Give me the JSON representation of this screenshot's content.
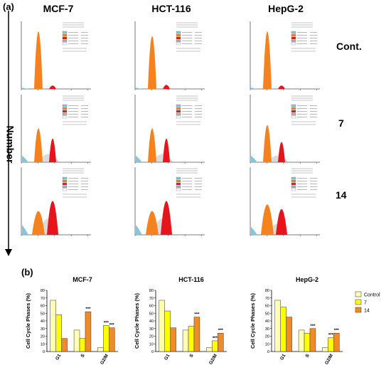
{
  "panel_a": {
    "label": "(a)",
    "columns": [
      "MCF-7",
      "HCT-116",
      "HepG-2"
    ],
    "rows": [
      "Cont.",
      "7",
      "14"
    ],
    "y_axis_label": "Number"
  },
  "panel_b": {
    "label": "(b)"
  },
  "colors": {
    "control": "#ffffb3",
    "t7": "#ffff00",
    "t14": "#f08c28",
    "g1_peak": "#f5821f",
    "g2_peak": "#e8141c",
    "apoptosis": "#7ec8e3",
    "s_phase": "#b0b0b0"
  },
  "chart_data": [
    {
      "type": "bar",
      "title": "MCF-7",
      "ylabel": "Cell Cycle Phases (%)",
      "categories": [
        "G1",
        "S",
        "G2/M"
      ],
      "ylim": [
        0,
        80
      ],
      "yticks": [
        0,
        10,
        20,
        30,
        40,
        50,
        60,
        70,
        80
      ],
      "series": [
        {
          "name": "Control",
          "values": [
            67,
            28,
            5
          ]
        },
        {
          "name": "7",
          "values": [
            48,
            17,
            34
          ]
        },
        {
          "name": "14",
          "values": [
            17,
            52,
            31
          ]
        }
      ],
      "annotations": [
        {
          "category": "S",
          "series": "14",
          "text": "***"
        },
        {
          "category": "G2/M",
          "series": "7",
          "text": "***"
        },
        {
          "category": "G2/M",
          "series": "14",
          "text": "***"
        }
      ]
    },
    {
      "type": "bar",
      "title": "HCT-116",
      "ylabel": "Cell Cycle Phases (%)",
      "categories": [
        "G1",
        "S",
        "G2/M"
      ],
      "ylim": [
        0,
        80
      ],
      "yticks": [
        0,
        10,
        20,
        30,
        40,
        50,
        60,
        70,
        80
      ],
      "series": [
        {
          "name": "Control",
          "values": [
            67,
            28,
            5
          ]
        },
        {
          "name": "7",
          "values": [
            53,
            33,
            14
          ]
        },
        {
          "name": "14",
          "values": [
            31,
            45,
            24
          ]
        }
      ],
      "annotations": [
        {
          "category": "S",
          "series": "14",
          "text": "***"
        },
        {
          "category": "G2/M",
          "series": "7",
          "text": "***"
        },
        {
          "category": "G2/M",
          "series": "14",
          "text": "***"
        }
      ]
    },
    {
      "type": "bar",
      "title": "HepG-2",
      "ylabel": "Cell Cycle Phases (%)",
      "categories": [
        "G1",
        "S",
        "G2/M"
      ],
      "ylim": [
        0,
        80
      ],
      "yticks": [
        0,
        10,
        20,
        30,
        40,
        50,
        60,
        70,
        80
      ],
      "series": [
        {
          "name": "Control",
          "values": [
            67,
            28,
            5
          ]
        },
        {
          "name": "7",
          "values": [
            58,
            24,
            18
          ]
        },
        {
          "name": "14",
          "values": [
            45,
            30,
            24
          ]
        }
      ],
      "annotations": [
        {
          "category": "S",
          "series": "14",
          "text": "***"
        },
        {
          "category": "G2/M",
          "series": "7",
          "text": "***"
        },
        {
          "category": "G2/M",
          "series": "14",
          "text": "***"
        }
      ],
      "legend": {
        "position": "right",
        "entries": [
          "Control",
          "7",
          "14"
        ]
      }
    }
  ]
}
